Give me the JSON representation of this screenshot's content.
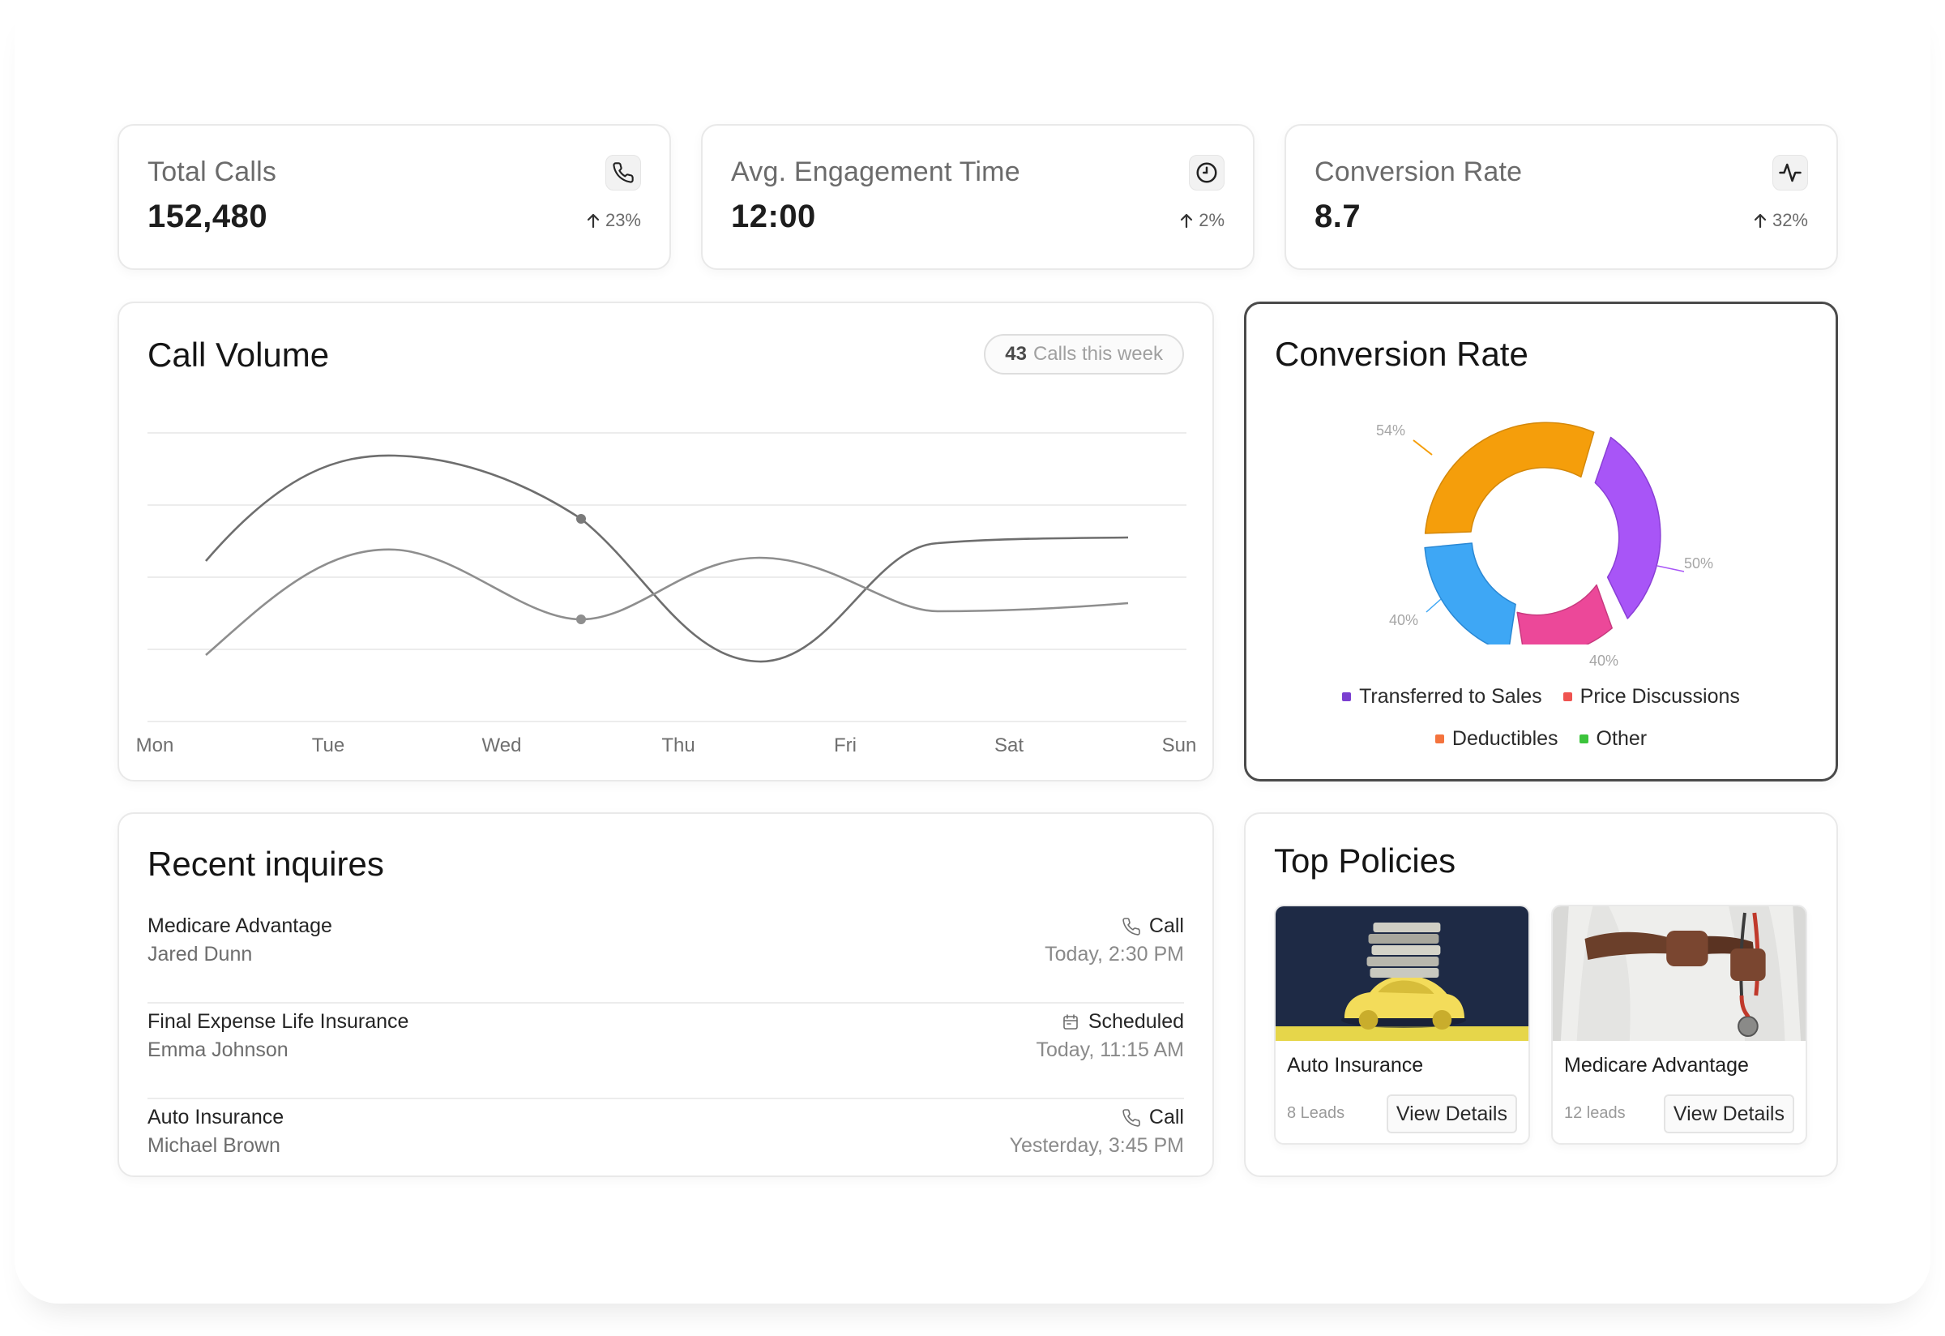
{
  "stats": [
    {
      "title": "Total Calls",
      "value": "152,480",
      "change": "23%",
      "icon": "phone-icon"
    },
    {
      "title": "Avg. Engagement Time",
      "value": "12:00",
      "change": "2%",
      "icon": "clock-icon"
    },
    {
      "title": "Conversion Rate",
      "value": "8.7",
      "change": "32%",
      "icon": "activity-icon"
    }
  ],
  "call_volume": {
    "title": "Call Volume",
    "badge_count": "43",
    "badge_text": "Calls this week",
    "days": [
      "Mon",
      "Tue",
      "Wed",
      "Thu",
      "Fri",
      "Sat",
      "Sun"
    ]
  },
  "conversion": {
    "title": "Conversion Rate",
    "labels": {
      "orange": "54%",
      "purple": "50%",
      "pink": "40%",
      "blue": "40%"
    },
    "legend": [
      {
        "label": "Transferred to Sales",
        "color": "#7b3fd0"
      },
      {
        "label": "Price Discussions",
        "color": "#ef5350"
      },
      {
        "label": "Deductibles",
        "color": "#f4733d"
      },
      {
        "label": "Other",
        "color": "#3cc43c"
      }
    ],
    "segment_colors": {
      "orange": "#f59e0b",
      "purple": "#a855f7",
      "pink": "#ec4899",
      "blue": "#3ea7f5"
    }
  },
  "inquiries": {
    "title": "Recent inquires",
    "items": [
      {
        "policy": "Medicare Advantage",
        "name": "Jared Dunn",
        "type": "Call",
        "type_icon": "phone-icon",
        "time": "Today, 2:30 PM"
      },
      {
        "policy": "Final Expense Life Insurance",
        "name": "Emma Johnson",
        "type": "Scheduled",
        "type_icon": "calendar-icon",
        "time": "Today, 11:15 AM"
      },
      {
        "policy": "Auto Insurance",
        "name": "Michael Brown",
        "type": "Call",
        "type_icon": "phone-icon",
        "time": "Yesterday, 3:45 PM"
      }
    ]
  },
  "policies": {
    "title": "Top Policies",
    "items": [
      {
        "name": "Auto Insurance",
        "leads": "8 Leads",
        "button": "View Details",
        "image": "car-with-money-image"
      },
      {
        "name": "Medicare Advantage",
        "leads": "12 leads",
        "button": "View Details",
        "image": "doctor-with-stethoscope-image"
      }
    ]
  }
}
